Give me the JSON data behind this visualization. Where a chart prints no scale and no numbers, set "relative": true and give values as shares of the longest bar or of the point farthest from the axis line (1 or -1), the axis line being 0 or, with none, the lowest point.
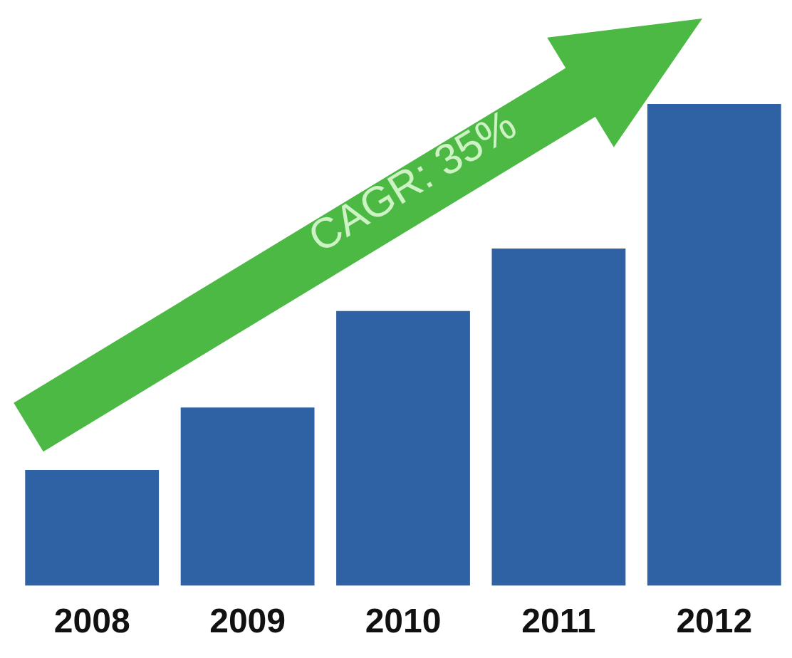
{
  "chart_data": {
    "type": "bar",
    "relative": true,
    "categories": [
      "2008",
      "2009",
      "2010",
      "2011",
      "2012"
    ],
    "values": [
      0.24,
      0.37,
      0.57,
      0.7,
      1
    ],
    "color": "#2f62a5",
    "annotations": [
      "CAGR: 35%"
    ]
  }
}
